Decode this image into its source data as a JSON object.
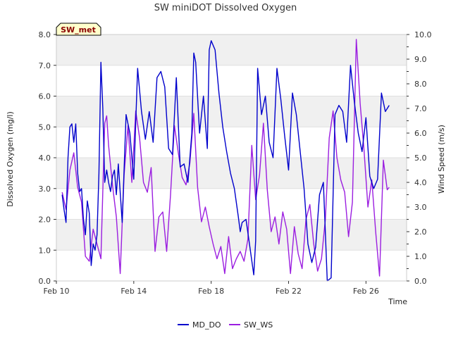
{
  "chart_data": {
    "type": "line",
    "title": "SW miniDOT Dissolved Oxygen",
    "badge": "SW_met",
    "xlabel": "Time",
    "ylabel": "Dissolved Oxygen (mg/l)",
    "y2label": "Wind Speed (m/s)",
    "x_ticks": [
      "Feb 10",
      "Feb 14",
      "Feb 18",
      "Feb 22",
      "Feb 26"
    ],
    "x_tick_days": [
      10,
      14,
      18,
      22,
      26
    ],
    "xlim": [
      10,
      28.1
    ],
    "ylim": [
      0,
      8
    ],
    "y_ticks": [
      "0.0",
      "1.0",
      "2.0",
      "3.0",
      "4.0",
      "5.0",
      "6.0",
      "7.0",
      "8.0"
    ],
    "y2lim": [
      0,
      10
    ],
    "y2_ticks": [
      "0.0",
      "1.0",
      "2.0",
      "3.0",
      "4.0",
      "5.0",
      "6.0",
      "7.0",
      "8.0",
      "9.0",
      "10.0"
    ],
    "grid": "horizontal bands",
    "legend_position": "bottom-center",
    "colors": {
      "MD_DO": "#0000cc",
      "SW_WS": "#9b1ee0",
      "band": "#f0f0f0",
      "badge_bg": "#ffffcc"
    },
    "series": [
      {
        "name": "MD_DO",
        "axis": "left",
        "x": [
          10.3,
          10.4,
          10.5,
          10.6,
          10.7,
          10.8,
          10.9,
          11.0,
          11.1,
          11.2,
          11.3,
          11.4,
          11.5,
          11.6,
          11.7,
          11.8,
          11.9,
          12.0,
          12.1,
          12.2,
          12.3,
          12.4,
          12.5,
          12.6,
          12.7,
          12.8,
          12.9,
          13.0,
          13.1,
          13.2,
          13.4,
          13.6,
          13.8,
          14.0,
          14.2,
          14.4,
          14.6,
          14.8,
          15.0,
          15.2,
          15.4,
          15.6,
          15.8,
          16.0,
          16.2,
          16.4,
          16.6,
          16.8,
          17.0,
          17.1,
          17.2,
          17.4,
          17.6,
          17.8,
          17.9,
          18.0,
          18.2,
          18.4,
          18.6,
          18.8,
          19.0,
          19.2,
          19.4,
          19.5,
          19.6,
          19.8,
          20.0,
          20.2,
          20.3,
          20.4,
          20.6,
          20.8,
          21.0,
          21.2,
          21.4,
          21.6,
          21.8,
          22.0,
          22.2,
          22.4,
          22.6,
          22.8,
          23.0,
          23.2,
          23.4,
          23.6,
          23.8,
          24.0,
          24.2,
          24.4,
          24.6,
          24.8,
          25.0,
          25.2,
          25.4,
          25.6,
          25.8,
          26.0,
          26.2,
          26.4,
          26.6,
          26.8,
          27.0,
          27.2
        ],
        "y": [
          2.8,
          2.3,
          1.9,
          4.0,
          5.0,
          5.1,
          4.5,
          5.1,
          3.5,
          2.9,
          3.0,
          2.0,
          1.5,
          2.6,
          2.2,
          0.5,
          1.2,
          1.0,
          1.5,
          3.5,
          7.1,
          5.6,
          3.2,
          3.6,
          3.2,
          2.9,
          3.4,
          3.6,
          2.8,
          3.8,
          1.9,
          5.4,
          4.8,
          3.3,
          6.9,
          5.5,
          4.6,
          5.5,
          4.5,
          6.6,
          6.8,
          6.3,
          4.3,
          4.1,
          6.6,
          3.7,
          3.8,
          3.2,
          4.8,
          7.4,
          7.1,
          4.8,
          6.0,
          4.3,
          7.5,
          7.8,
          7.5,
          6.1,
          5.0,
          4.2,
          3.5,
          3.0,
          2.1,
          1.6,
          1.9,
          2.0,
          1.1,
          0.2,
          1.3,
          6.9,
          5.4,
          6.0,
          4.5,
          4.0,
          6.9,
          5.9,
          4.7,
          3.6,
          6.1,
          5.4,
          4.2,
          3.0,
          1.2,
          0.6,
          1.1,
          2.8,
          3.2,
          0.0,
          0.1,
          5.4,
          5.7,
          5.5,
          4.5,
          7.0,
          5.8,
          4.8,
          4.2,
          5.3,
          3.4,
          3.0,
          3.3,
          6.1,
          5.5,
          5.7
        ],
        "values": [
          2.8,
          2.3,
          1.9,
          4.0,
          5.0,
          5.1,
          4.5,
          5.1,
          3.5,
          2.9,
          3.0,
          2.0,
          1.5,
          2.6,
          2.2,
          0.5,
          1.2,
          1.0,
          1.5,
          3.5,
          7.1,
          5.6,
          3.2,
          3.6,
          3.2,
          2.9,
          3.4,
          3.6,
          2.8,
          3.8,
          1.9,
          5.4,
          4.8,
          3.3,
          6.9,
          5.5,
          4.6,
          5.5,
          4.5,
          6.6,
          6.8,
          6.3,
          4.3,
          4.1,
          6.6,
          3.7,
          3.8,
          3.2,
          4.8,
          7.4,
          7.1,
          4.8,
          6.0,
          4.3,
          7.5,
          7.8,
          7.5,
          6.1,
          5.0,
          4.2,
          3.5,
          3.0,
          2.1,
          1.6,
          1.9,
          2.0,
          1.1,
          0.2,
          1.3,
          6.9,
          5.4,
          6.0,
          4.5,
          4.0,
          6.9,
          5.9,
          4.7,
          3.6,
          6.1,
          5.4,
          4.2,
          3.0,
          1.2,
          0.6,
          1.1,
          2.8,
          3.2,
          0.0,
          0.1,
          5.4,
          5.7,
          5.5,
          4.5,
          7.0,
          5.8,
          4.8,
          4.2,
          5.3,
          3.4,
          3.0,
          3.3,
          6.1,
          5.5,
          5.7
        ]
      },
      {
        "name": "SW_WS",
        "axis": "right",
        "x": [
          10.3,
          10.5,
          10.7,
          10.9,
          11.1,
          11.3,
          11.5,
          11.7,
          11.9,
          12.1,
          12.3,
          12.5,
          12.6,
          12.7,
          12.9,
          13.1,
          13.3,
          13.5,
          13.7,
          13.9,
          14.1,
          14.3,
          14.5,
          14.7,
          14.9,
          15.1,
          15.3,
          15.5,
          15.7,
          15.9,
          16.1,
          16.3,
          16.5,
          16.7,
          16.9,
          17.1,
          17.3,
          17.5,
          17.7,
          17.9,
          18.1,
          18.3,
          18.5,
          18.7,
          18.9,
          19.1,
          19.3,
          19.5,
          19.7,
          19.9,
          20.1,
          20.3,
          20.5,
          20.7,
          20.9,
          21.1,
          21.3,
          21.5,
          21.7,
          21.9,
          22.1,
          22.3,
          22.5,
          22.7,
          22.9,
          23.1,
          23.3,
          23.5,
          23.7,
          23.9,
          24.1,
          24.3,
          24.5,
          24.7,
          24.9,
          25.1,
          25.3,
          25.5,
          25.7,
          25.9,
          26.1,
          26.3,
          26.5,
          26.7,
          26.9,
          27.1,
          27.2
        ],
        "y": [
          3.6,
          2.9,
          4.5,
          5.2,
          3.8,
          3.2,
          1.0,
          0.8,
          2.1,
          1.5,
          0.9,
          6.4,
          6.7,
          5.5,
          3.9,
          2.6,
          0.3,
          4.3,
          6.3,
          4.0,
          6.9,
          5.8,
          4.0,
          3.6,
          4.6,
          1.2,
          2.6,
          2.8,
          1.2,
          3.5,
          6.3,
          5.2,
          4.2,
          3.9,
          4.8,
          6.8,
          3.8,
          2.4,
          3.0,
          2.2,
          1.5,
          0.9,
          1.4,
          0.3,
          1.8,
          0.5,
          0.9,
          1.2,
          0.8,
          1.7,
          5.5,
          3.3,
          4.3,
          6.4,
          3.7,
          2.0,
          2.6,
          1.5,
          2.8,
          2.1,
          0.3,
          2.2,
          1.1,
          0.5,
          2.5,
          3.1,
          1.5,
          0.4,
          0.9,
          2.5,
          5.8,
          6.9,
          5.0,
          4.1,
          3.6,
          1.8,
          3.2,
          9.8,
          7.2,
          5.3,
          3.0,
          4.1,
          2.0,
          0.2,
          4.9,
          3.7,
          3.8
        ]
      }
    ]
  }
}
